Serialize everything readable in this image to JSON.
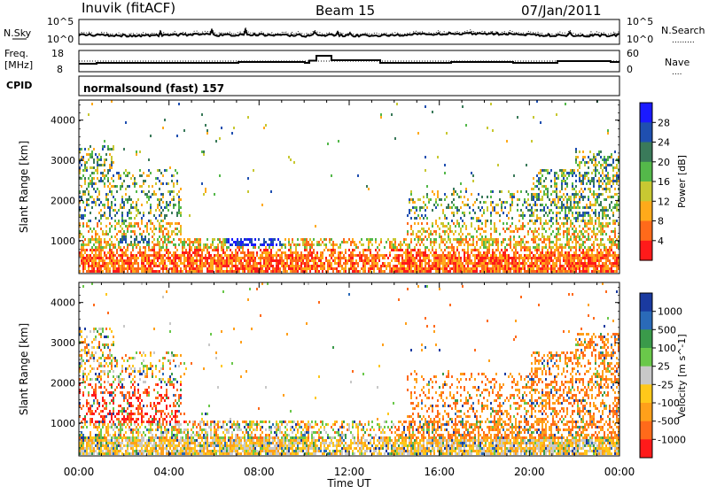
{
  "header": {
    "station": "Inuvik (fitACF)",
    "beam": "Beam 15",
    "date": "07/Jan/2011"
  },
  "strips": {
    "nsky_label": "N.Sky",
    "nsearch_label": "N.Search",
    "nsearch_marker": ".........",
    "freq_label_line1": "Freq.",
    "freq_label_line2": "[MHz]",
    "nave_label": "Nave",
    "nave_marker": "....",
    "cpid_label": "CPID",
    "cpid_value": "normalsound (fast) 157",
    "noise_ticks_left": [
      "10^5",
      "10^0"
    ],
    "noise_ticks_right": [
      "10^5",
      "10^0"
    ],
    "freq_ticks": [
      "18",
      "8"
    ],
    "nave_ticks": [
      "60",
      "0"
    ]
  },
  "colorbars": {
    "power": {
      "label": "Power [dB]",
      "ticks": [
        "4",
        "8",
        "12",
        "16",
        "20",
        "24",
        "28"
      ],
      "colors": [
        "#1a1aff",
        "#1f4fb0",
        "#3a7a5a",
        "#54b84a",
        "#c8c832",
        "#ffaa1a",
        "#ff6a1a",
        "#ff1a1a"
      ]
    },
    "velocity": {
      "label": "Velocity [m s^-1]",
      "ticks": [
        "1000",
        "500",
        "100",
        "25",
        "-25",
        "-100",
        "-500",
        "-1000"
      ],
      "colors": [
        "#1a3aa0",
        "#2a6ab8",
        "#3a9a4a",
        "#6ac84a",
        "#c8c8c8",
        "#ffc81a",
        "#ffa01a",
        "#ff6a1a",
        "#ff1a1a"
      ]
    }
  },
  "chart_data": [
    {
      "type": "heatmap",
      "title": "Beam 15",
      "ylabel": "Slant Range [km]",
      "xlabel": "",
      "xlim": [
        "00:00",
        "00:00"
      ],
      "ylim": [
        180,
        4500
      ],
      "yticks": [
        "1000",
        "2000",
        "3000",
        "4000"
      ],
      "xticks": [
        "00:00",
        "04:00",
        "08:00",
        "12:00",
        "16:00",
        "20:00",
        "00:00"
      ],
      "colorbar": "Power [dB]"
    },
    {
      "type": "heatmap",
      "ylabel": "Slant Range [km]",
      "xlabel": "Time UT",
      "xlim": [
        "00:00",
        "00:00"
      ],
      "ylim": [
        180,
        4500
      ],
      "yticks": [
        "1000",
        "2000",
        "3000",
        "4000"
      ],
      "xticks": [
        "00:00",
        "04:00",
        "08:00",
        "12:00",
        "16:00",
        "20:00",
        "00:00"
      ],
      "colorbar": "Velocity [m s^-1]"
    }
  ]
}
